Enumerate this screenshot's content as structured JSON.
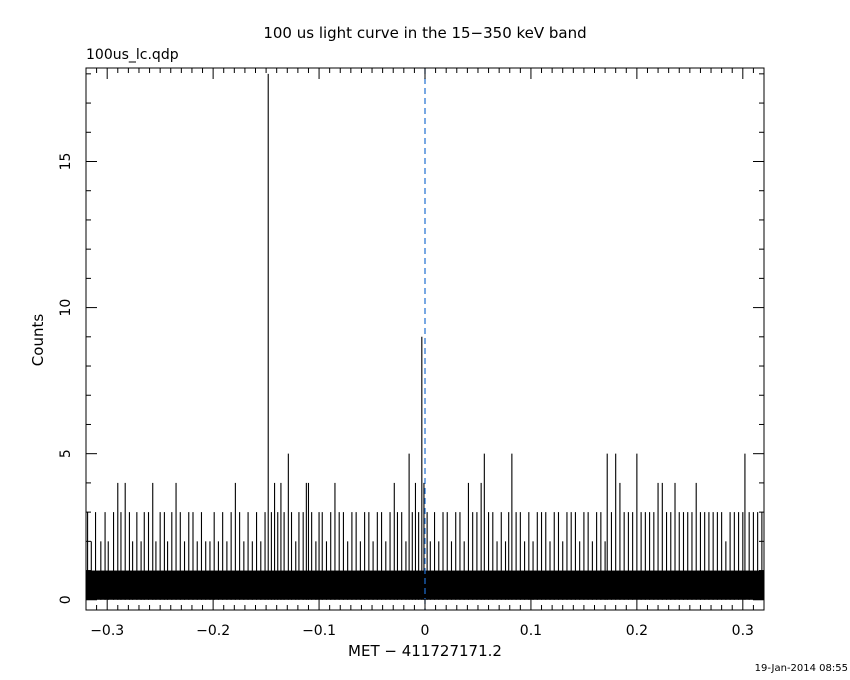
{
  "chart_data": {
    "type": "bar",
    "title": "100 us light curve in the 15−350 keV band",
    "file_label": "100us_lc.qdp",
    "xlabel": "MET − 411727171.2",
    "ylabel": "Counts",
    "footer": "19-Jan-2014 08:55",
    "xlim": [
      -0.32,
      0.32
    ],
    "ylim": [
      -0.35,
      18.2
    ],
    "x_ticks": [
      -0.3,
      -0.2,
      -0.1,
      0,
      0.1,
      0.2,
      0.3
    ],
    "x_tick_labels": [
      "−0.3",
      "−0.2",
      "−0.1",
      "0",
      "0.1",
      "0.2",
      "0.3"
    ],
    "y_ticks": [
      0,
      5,
      10,
      15
    ],
    "y_tick_labels": [
      "0",
      "5",
      "10",
      "15"
    ],
    "bin_width": 0.0001,
    "baseline_band": {
      "from": 0,
      "to": 1
    },
    "marker_line": {
      "x": 0,
      "color": "#1f6fd0",
      "style": "dashed"
    },
    "series": [
      {
        "values": [
          [
            -0.3185,
            3
          ],
          [
            -0.315,
            2
          ],
          [
            -0.311,
            3
          ],
          [
            -0.306,
            2
          ],
          [
            -0.302,
            3
          ],
          [
            -0.299,
            2
          ],
          [
            -0.294,
            3
          ],
          [
            -0.29,
            4
          ],
          [
            -0.287,
            3
          ],
          [
            -0.283,
            4
          ],
          [
            -0.279,
            3
          ],
          [
            -0.276,
            2
          ],
          [
            -0.272,
            3
          ],
          [
            -0.268,
            2
          ],
          [
            -0.265,
            3
          ],
          [
            -0.261,
            3
          ],
          [
            -0.257,
            4
          ],
          [
            -0.254,
            2
          ],
          [
            -0.25,
            3
          ],
          [
            -0.246,
            3
          ],
          [
            -0.243,
            2
          ],
          [
            -0.239,
            3
          ],
          [
            -0.235,
            4
          ],
          [
            -0.231,
            3
          ],
          [
            -0.227,
            2
          ],
          [
            -0.223,
            3
          ],
          [
            -0.219,
            3
          ],
          [
            -0.215,
            2
          ],
          [
            -0.211,
            3
          ],
          [
            -0.207,
            2
          ],
          [
            -0.203,
            2
          ],
          [
            -0.199,
            3
          ],
          [
            -0.195,
            2
          ],
          [
            -0.191,
            3
          ],
          [
            -0.187,
            2
          ],
          [
            -0.183,
            3
          ],
          [
            -0.179,
            4
          ],
          [
            -0.175,
            3
          ],
          [
            -0.171,
            2
          ],
          [
            -0.167,
            3
          ],
          [
            -0.163,
            2
          ],
          [
            -0.159,
            3
          ],
          [
            -0.155,
            2
          ],
          [
            -0.151,
            3
          ],
          [
            -0.148,
            18
          ],
          [
            -0.145,
            3
          ],
          [
            -0.142,
            4
          ],
          [
            -0.139,
            3
          ],
          [
            -0.136,
            4
          ],
          [
            -0.133,
            3
          ],
          [
            -0.129,
            5
          ],
          [
            -0.126,
            3
          ],
          [
            -0.122,
            2
          ],
          [
            -0.119,
            3
          ],
          [
            -0.115,
            3
          ],
          [
            -0.112,
            4
          ],
          [
            -0.11,
            4
          ],
          [
            -0.107,
            3
          ],
          [
            -0.103,
            2
          ],
          [
            -0.1,
            3
          ],
          [
            -0.097,
            3
          ],
          [
            -0.093,
            2
          ],
          [
            -0.089,
            3
          ],
          [
            -0.085,
            4
          ],
          [
            -0.081,
            3
          ],
          [
            -0.077,
            3
          ],
          [
            -0.073,
            2
          ],
          [
            -0.069,
            3
          ],
          [
            -0.065,
            3
          ],
          [
            -0.061,
            2
          ],
          [
            -0.057,
            3
          ],
          [
            -0.053,
            3
          ],
          [
            -0.049,
            2
          ],
          [
            -0.045,
            3
          ],
          [
            -0.041,
            3
          ],
          [
            -0.037,
            2
          ],
          [
            -0.033,
            3
          ],
          [
            -0.029,
            4
          ],
          [
            -0.026,
            3
          ],
          [
            -0.022,
            3
          ],
          [
            -0.018,
            2
          ],
          [
            -0.015,
            5
          ],
          [
            -0.012,
            3
          ],
          [
            -0.009,
            4
          ],
          [
            -0.006,
            3
          ],
          [
            -0.003,
            9
          ],
          [
            -0.001,
            4
          ],
          [
            0.002,
            3
          ],
          [
            0.005,
            2
          ],
          [
            0.009,
            3
          ],
          [
            0.013,
            2
          ],
          [
            0.017,
            3
          ],
          [
            0.021,
            3
          ],
          [
            0.025,
            2
          ],
          [
            0.029,
            3
          ],
          [
            0.033,
            3
          ],
          [
            0.037,
            2
          ],
          [
            0.041,
            4
          ],
          [
            0.045,
            3
          ],
          [
            0.049,
            3
          ],
          [
            0.053,
            4
          ],
          [
            0.056,
            5
          ],
          [
            0.06,
            3
          ],
          [
            0.064,
            3
          ],
          [
            0.068,
            2
          ],
          [
            0.072,
            3
          ],
          [
            0.076,
            2
          ],
          [
            0.079,
            3
          ],
          [
            0.082,
            5
          ],
          [
            0.086,
            3
          ],
          [
            0.09,
            3
          ],
          [
            0.094,
            2
          ],
          [
            0.098,
            3
          ],
          [
            0.102,
            2
          ],
          [
            0.106,
            3
          ],
          [
            0.11,
            3
          ],
          [
            0.114,
            3
          ],
          [
            0.118,
            2
          ],
          [
            0.122,
            3
          ],
          [
            0.126,
            3
          ],
          [
            0.13,
            2
          ],
          [
            0.134,
            3
          ],
          [
            0.138,
            3
          ],
          [
            0.142,
            3
          ],
          [
            0.146,
            2
          ],
          [
            0.15,
            3
          ],
          [
            0.154,
            3
          ],
          [
            0.158,
            2
          ],
          [
            0.162,
            3
          ],
          [
            0.166,
            3
          ],
          [
            0.17,
            2
          ],
          [
            0.172,
            5
          ],
          [
            0.176,
            3
          ],
          [
            0.18,
            5
          ],
          [
            0.184,
            4
          ],
          [
            0.188,
            3
          ],
          [
            0.192,
            3
          ],
          [
            0.196,
            3
          ],
          [
            0.2,
            5
          ],
          [
            0.204,
            3
          ],
          [
            0.208,
            3
          ],
          [
            0.212,
            3
          ],
          [
            0.216,
            3
          ],
          [
            0.22,
            4
          ],
          [
            0.224,
            4
          ],
          [
            0.228,
            3
          ],
          [
            0.232,
            3
          ],
          [
            0.236,
            4
          ],
          [
            0.24,
            3
          ],
          [
            0.244,
            3
          ],
          [
            0.248,
            3
          ],
          [
            0.252,
            3
          ],
          [
            0.256,
            4
          ],
          [
            0.26,
            3
          ],
          [
            0.264,
            3
          ],
          [
            0.268,
            3
          ],
          [
            0.272,
            3
          ],
          [
            0.276,
            3
          ],
          [
            0.28,
            3
          ],
          [
            0.284,
            2
          ],
          [
            0.288,
            3
          ],
          [
            0.292,
            3
          ],
          [
            0.296,
            3
          ],
          [
            0.3,
            3
          ],
          [
            0.302,
            5
          ],
          [
            0.306,
            3
          ],
          [
            0.31,
            3
          ],
          [
            0.314,
            3
          ],
          [
            0.318,
            3
          ]
        ]
      }
    ]
  }
}
